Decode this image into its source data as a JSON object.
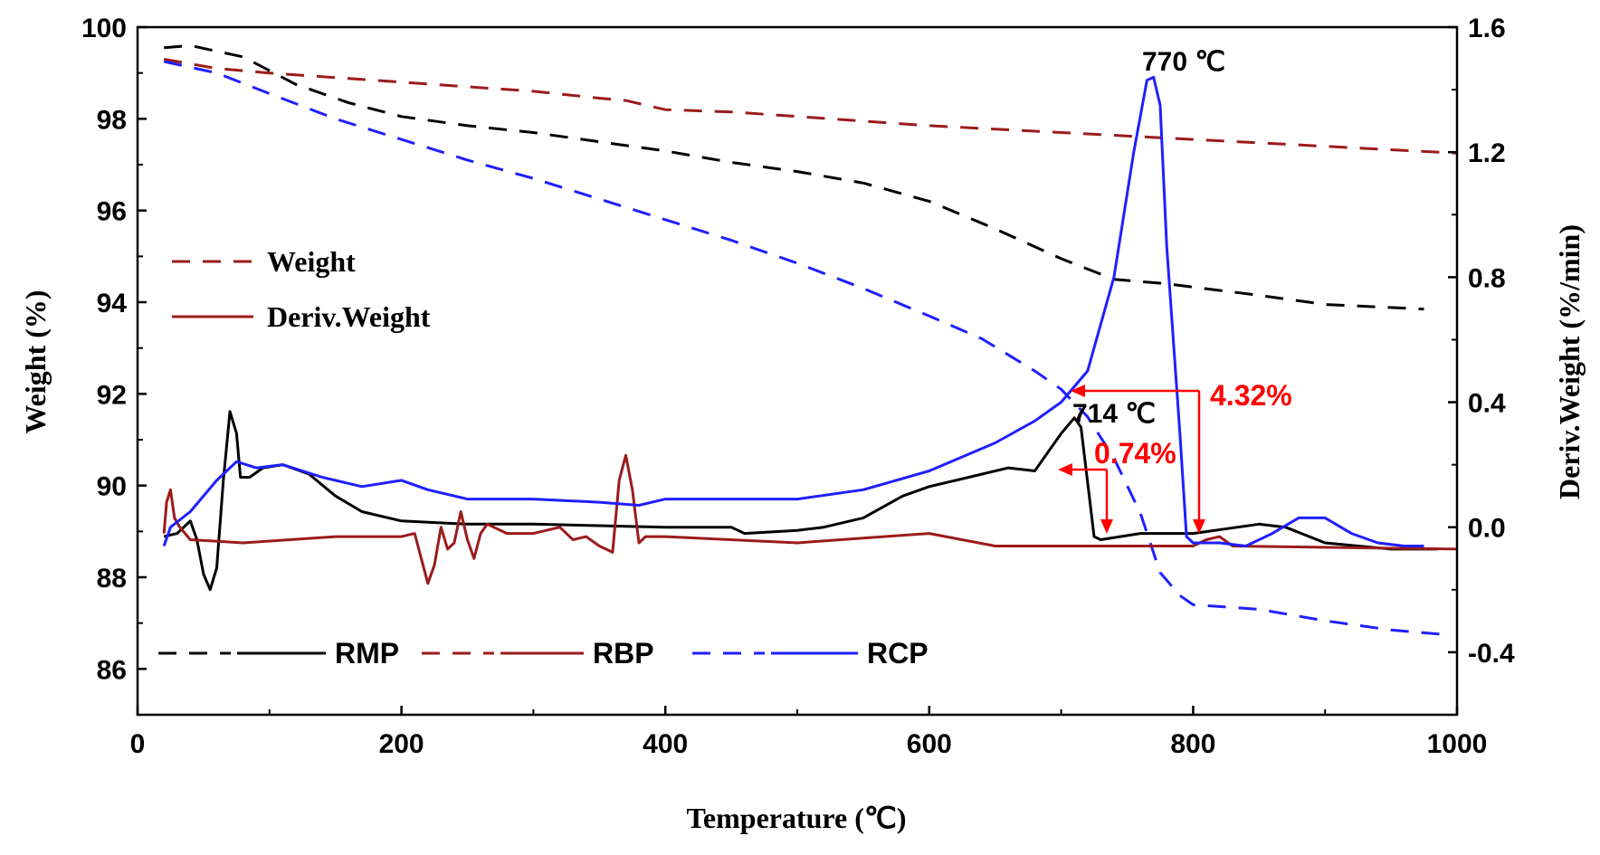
{
  "chart_data": {
    "type": "line",
    "title": "",
    "xlabel": "Temperature (℃)",
    "ylabel_left": "Weight (%)",
    "ylabel_right": "Deriv.Weight (%/min)",
    "xlim": [
      0,
      1000
    ],
    "ylim_left": [
      85,
      100
    ],
    "ylim_right": [
      -0.6,
      1.6
    ],
    "x_ticks": [
      "0",
      "200",
      "400",
      "600",
      "800",
      "1000"
    ],
    "y_left_ticks": [
      "86",
      "88",
      "90",
      "92",
      "94",
      "96",
      "98",
      "100"
    ],
    "y_right_ticks": [
      "-0.4",
      "0.0",
      "0.4",
      "0.8",
      "1.2",
      "1.6"
    ],
    "grid": false,
    "colors": {
      "RMP": "#000000",
      "RBP": "#9b1b1b",
      "RCP": "#1f1fff",
      "annotation": "#ff0000"
    },
    "style_legend": [
      {
        "label": "Weight",
        "dash": "dashed"
      },
      {
        "label": "Deriv.Weight",
        "dash": "solid"
      }
    ],
    "sample_legend": [
      {
        "label": "RMP",
        "key": "RMP"
      },
      {
        "label": "RBP",
        "key": "RBP"
      },
      {
        "label": "RCP",
        "key": "RCP"
      }
    ],
    "annotations": {
      "peak_rcp": "770 ℃",
      "peak_rmp": "714 ℃",
      "loss_rcp": "4.32%",
      "loss_rmp": "0.74%"
    },
    "series": [
      {
        "name": "RMP weight",
        "sample": "RMP",
        "kind": "weight",
        "axis": "left",
        "points": [
          [
            20,
            99.55
          ],
          [
            40,
            99.6
          ],
          [
            80,
            99.35
          ],
          [
            120,
            98.75
          ],
          [
            160,
            98.35
          ],
          [
            200,
            98.05
          ],
          [
            250,
            97.85
          ],
          [
            300,
            97.7
          ],
          [
            350,
            97.5
          ],
          [
            400,
            97.3
          ],
          [
            450,
            97.05
          ],
          [
            500,
            96.85
          ],
          [
            550,
            96.6
          ],
          [
            600,
            96.2
          ],
          [
            650,
            95.6
          ],
          [
            700,
            94.95
          ],
          [
            740,
            94.5
          ],
          [
            780,
            94.4
          ],
          [
            850,
            94.15
          ],
          [
            900,
            93.95
          ],
          [
            975,
            93.85
          ]
        ]
      },
      {
        "name": "RBP weight",
        "sample": "RBP",
        "kind": "weight",
        "axis": "left",
        "points": [
          [
            20,
            99.3
          ],
          [
            60,
            99.1
          ],
          [
            100,
            99.0
          ],
          [
            200,
            98.8
          ],
          [
            300,
            98.6
          ],
          [
            350,
            98.45
          ],
          [
            370,
            98.4
          ],
          [
            400,
            98.2
          ],
          [
            450,
            98.15
          ],
          [
            500,
            98.05
          ],
          [
            600,
            97.85
          ],
          [
            700,
            97.7
          ],
          [
            800,
            97.55
          ],
          [
            900,
            97.4
          ],
          [
            1000,
            97.25
          ]
        ]
      },
      {
        "name": "RCP weight",
        "sample": "RCP",
        "kind": "weight",
        "axis": "left",
        "points": [
          [
            20,
            99.25
          ],
          [
            60,
            99.0
          ],
          [
            100,
            98.55
          ],
          [
            150,
            98.0
          ],
          [
            200,
            97.55
          ],
          [
            250,
            97.1
          ],
          [
            300,
            96.7
          ],
          [
            350,
            96.25
          ],
          [
            400,
            95.8
          ],
          [
            450,
            95.35
          ],
          [
            500,
            94.85
          ],
          [
            550,
            94.3
          ],
          [
            600,
            93.7
          ],
          [
            640,
            93.2
          ],
          [
            680,
            92.5
          ],
          [
            700,
            92.1
          ],
          [
            720,
            91.5
          ],
          [
            740,
            90.6
          ],
          [
            760,
            89.4
          ],
          [
            775,
            88.1
          ],
          [
            790,
            87.6
          ],
          [
            800,
            87.4
          ],
          [
            850,
            87.3
          ],
          [
            900,
            87.05
          ],
          [
            950,
            86.85
          ],
          [
            990,
            86.75
          ]
        ]
      },
      {
        "name": "RMP deriv",
        "sample": "RMP",
        "kind": "deriv",
        "axis": "right",
        "points": [
          [
            20,
            -0.03
          ],
          [
            30,
            -0.02
          ],
          [
            40,
            0.02
          ],
          [
            45,
            -0.04
          ],
          [
            50,
            -0.15
          ],
          [
            55,
            -0.2
          ],
          [
            60,
            -0.13
          ],
          [
            65,
            0.15
          ],
          [
            70,
            0.37
          ],
          [
            75,
            0.3
          ],
          [
            78,
            0.16
          ],
          [
            85,
            0.16
          ],
          [
            95,
            0.19
          ],
          [
            110,
            0.2
          ],
          [
            130,
            0.17
          ],
          [
            150,
            0.1
          ],
          [
            170,
            0.05
          ],
          [
            200,
            0.02
          ],
          [
            250,
            0.01
          ],
          [
            300,
            0.01
          ],
          [
            400,
            0.0
          ],
          [
            450,
            0.0
          ],
          [
            460,
            -0.02
          ],
          [
            500,
            -0.01
          ],
          [
            520,
            0.0
          ],
          [
            550,
            0.03
          ],
          [
            580,
            0.1
          ],
          [
            600,
            0.13
          ],
          [
            630,
            0.16
          ],
          [
            660,
            0.19
          ],
          [
            680,
            0.18
          ],
          [
            700,
            0.3
          ],
          [
            710,
            0.35
          ],
          [
            715,
            0.32
          ],
          [
            725,
            -0.03
          ],
          [
            730,
            -0.04
          ],
          [
            760,
            -0.02
          ],
          [
            800,
            -0.02
          ],
          [
            850,
            0.01
          ],
          [
            870,
            0.0
          ],
          [
            900,
            -0.05
          ],
          [
            950,
            -0.07
          ],
          [
            985,
            -0.07
          ]
        ]
      },
      {
        "name": "RBP deriv",
        "sample": "RBP",
        "kind": "deriv",
        "axis": "right",
        "points": [
          [
            20,
            -0.02
          ],
          [
            22,
            0.08
          ],
          [
            25,
            0.12
          ],
          [
            28,
            0.03
          ],
          [
            32,
            0.0
          ],
          [
            40,
            -0.04
          ],
          [
            80,
            -0.05
          ],
          [
            150,
            -0.03
          ],
          [
            200,
            -0.03
          ],
          [
            210,
            -0.02
          ],
          [
            215,
            -0.1
          ],
          [
            220,
            -0.18
          ],
          [
            225,
            -0.12
          ],
          [
            230,
            0.0
          ],
          [
            235,
            -0.07
          ],
          [
            240,
            -0.05
          ],
          [
            245,
            0.05
          ],
          [
            250,
            -0.04
          ],
          [
            255,
            -0.1
          ],
          [
            260,
            -0.02
          ],
          [
            265,
            0.01
          ],
          [
            280,
            -0.02
          ],
          [
            300,
            -0.02
          ],
          [
            320,
            0.0
          ],
          [
            330,
            -0.04
          ],
          [
            340,
            -0.03
          ],
          [
            350,
            -0.06
          ],
          [
            360,
            -0.08
          ],
          [
            365,
            0.15
          ],
          [
            370,
            0.23
          ],
          [
            375,
            0.12
          ],
          [
            380,
            -0.05
          ],
          [
            385,
            -0.03
          ],
          [
            400,
            -0.03
          ],
          [
            500,
            -0.05
          ],
          [
            600,
            -0.02
          ],
          [
            650,
            -0.06
          ],
          [
            700,
            -0.06
          ],
          [
            800,
            -0.06
          ],
          [
            810,
            -0.04
          ],
          [
            820,
            -0.03
          ],
          [
            830,
            -0.06
          ],
          [
            1000,
            -0.07
          ]
        ]
      },
      {
        "name": "RCP deriv",
        "sample": "RCP",
        "kind": "deriv",
        "axis": "right",
        "points": [
          [
            20,
            -0.06
          ],
          [
            25,
            0.0
          ],
          [
            40,
            0.05
          ],
          [
            60,
            0.15
          ],
          [
            75,
            0.21
          ],
          [
            90,
            0.19
          ],
          [
            110,
            0.2
          ],
          [
            140,
            0.16
          ],
          [
            170,
            0.13
          ],
          [
            200,
            0.15
          ],
          [
            220,
            0.12
          ],
          [
            250,
            0.09
          ],
          [
            300,
            0.09
          ],
          [
            350,
            0.08
          ],
          [
            380,
            0.07
          ],
          [
            400,
            0.09
          ],
          [
            450,
            0.09
          ],
          [
            500,
            0.09
          ],
          [
            550,
            0.12
          ],
          [
            600,
            0.18
          ],
          [
            650,
            0.27
          ],
          [
            680,
            0.34
          ],
          [
            700,
            0.4
          ],
          [
            720,
            0.5
          ],
          [
            740,
            0.8
          ],
          [
            755,
            1.2
          ],
          [
            765,
            1.43
          ],
          [
            770,
            1.44
          ],
          [
            775,
            1.35
          ],
          [
            780,
            0.9
          ],
          [
            790,
            0.3
          ],
          [
            795,
            -0.03
          ],
          [
            800,
            -0.05
          ],
          [
            820,
            -0.05
          ],
          [
            840,
            -0.06
          ],
          [
            860,
            -0.02
          ],
          [
            880,
            0.03
          ],
          [
            900,
            0.03
          ],
          [
            920,
            -0.02
          ],
          [
            940,
            -0.05
          ],
          [
            960,
            -0.06
          ],
          [
            975,
            -0.06
          ]
        ]
      }
    ]
  }
}
